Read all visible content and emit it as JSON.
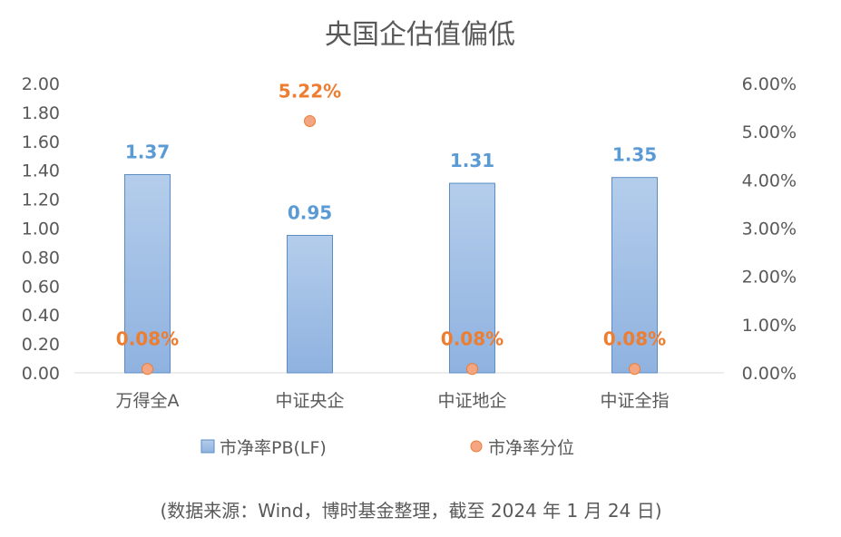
{
  "chart_data": {
    "type": "bar+scatter",
    "title": "央国企估值偏低",
    "categories": [
      "万得全A",
      "中证央企",
      "中证地企",
      "中证全指"
    ],
    "series": [
      {
        "name": "市净率PB(LF)",
        "type": "bar",
        "axis": "left",
        "values": [
          1.37,
          0.95,
          1.31,
          1.35
        ],
        "labels": [
          "1.37",
          "0.95",
          "1.31",
          "1.35"
        ],
        "color": "#9dbde6"
      },
      {
        "name": "市净率分位",
        "type": "scatter",
        "axis": "right",
        "values": [
          0.08,
          5.22,
          0.08,
          0.08
        ],
        "labels": [
          "0.08%",
          "5.22%",
          "0.08%",
          "0.08%"
        ],
        "color": "#f4a582"
      }
    ],
    "left_axis": {
      "ylim": [
        0,
        2.0
      ],
      "ticks": [
        "0.00",
        "0.20",
        "0.40",
        "0.60",
        "0.80",
        "1.00",
        "1.20",
        "1.40",
        "1.60",
        "1.80",
        "2.00"
      ]
    },
    "right_axis": {
      "ylim": [
        0,
        6.0
      ],
      "ticks": [
        "0.00%",
        "1.00%",
        "2.00%",
        "3.00%",
        "4.00%",
        "5.00%",
        "6.00%"
      ]
    },
    "grid": false,
    "legend": "bottom",
    "source": "(数据来源：Wind，博时基金整理，截至 2024 年 1 月 24 日)"
  }
}
